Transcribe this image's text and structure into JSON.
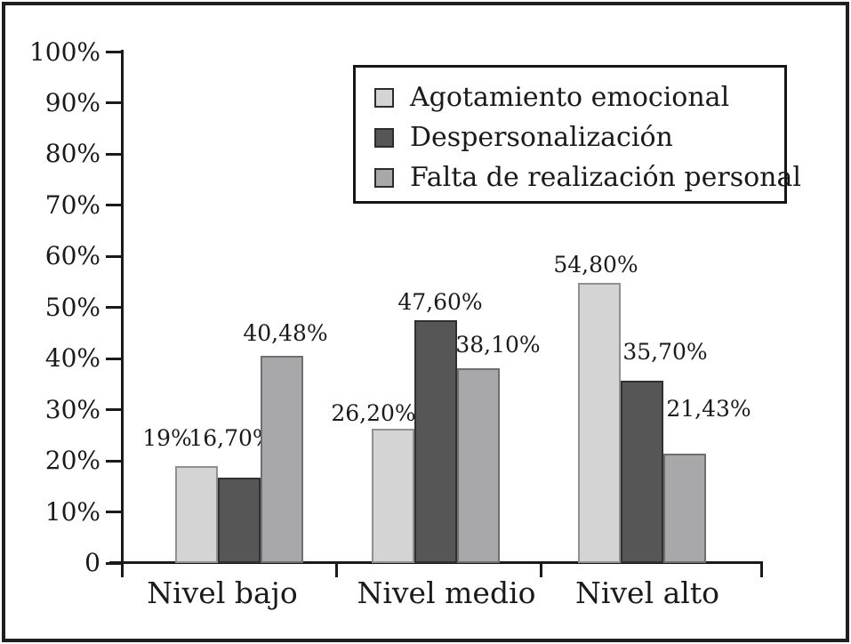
{
  "chart_data": {
    "type": "bar",
    "categories": [
      "Nivel bajo",
      "Nivel medio",
      "Nivel alto"
    ],
    "series": [
      {
        "name": "Agotamiento emocional",
        "color": "#d4d4d5",
        "border_color": "#909090",
        "values": [
          19,
          26.2,
          54.8
        ],
        "value_labels": [
          "19%",
          "26,20%",
          "54,80%"
        ]
      },
      {
        "name": "Despersonalización",
        "color": "#565656",
        "border_color": "#303030",
        "values": [
          16.7,
          47.6,
          35.7
        ],
        "value_labels": [
          "16,70%",
          "47,60%",
          "35,70%"
        ]
      },
      {
        "name": "Falta de realización personal",
        "color": "#a8a8aa",
        "border_color": "#6f6f6f",
        "values": [
          40.48,
          38.1,
          21.43
        ],
        "value_labels": [
          "40,48%",
          "38,10%",
          "21,43%"
        ]
      }
    ],
    "y_axis": {
      "min": 0,
      "max": 100,
      "tick_labels": [
        "100%",
        "90%",
        "80%",
        "70%",
        "60%",
        "50%",
        "40%",
        "30%",
        "20%",
        "10%",
        "0"
      ]
    },
    "legend_position": "top-right",
    "grid": false,
    "axis_color": "#1a1a1a",
    "text_color": "#1a1a1a",
    "label_layout": {
      "dx": [
        [
          -33,
          -9,
          4
        ],
        [
          -22,
          5,
          22
        ],
        [
          -4,
          26,
          27
        ]
      ],
      "gap": [
        [
          19,
          32,
          13
        ],
        [
          5,
          8,
          14
        ],
        [
          8,
          20,
          38
        ]
      ]
    }
  }
}
